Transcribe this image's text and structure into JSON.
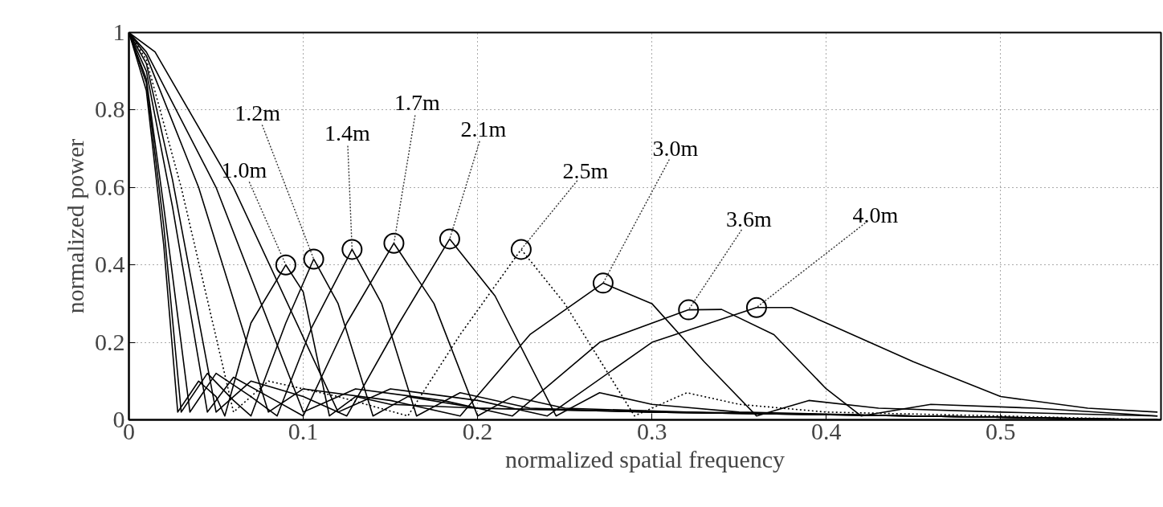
{
  "chart_data": {
    "type": "line",
    "xlabel": "normalized spatial frequency",
    "ylabel": "normalized power",
    "xlim": [
      0,
      0.592
    ],
    "ylim": [
      0,
      1
    ],
    "xticks": [
      0,
      0.1,
      0.2,
      0.3,
      0.4,
      0.5
    ],
    "yticks": [
      0,
      0.2,
      0.4,
      0.6,
      0.8,
      1
    ],
    "grid": true,
    "marker": "none",
    "line_style": "solid",
    "series": [
      {
        "color": "#000000",
        "x": [
          0,
          0.01,
          0.02,
          0.028,
          0.04,
          0.05,
          0.055,
          0.07,
          0.09,
          0.1,
          0.115,
          0.13,
          0.15,
          0.2,
          0.3,
          0.45,
          0.59
        ],
        "values": [
          1,
          0.85,
          0.45,
          0.02,
          0.1,
          0.06,
          0.01,
          0.25,
          0.4,
          0.33,
          0.01,
          0.06,
          0.04,
          0.03,
          0.02,
          0.01,
          0.0
        ]
      },
      {
        "color": "#000000",
        "x": [
          0,
          0.01,
          0.02,
          0.03,
          0.045,
          0.06,
          0.07,
          0.09,
          0.106,
          0.12,
          0.14,
          0.16,
          0.2,
          0.3,
          0.45,
          0.59
        ],
        "values": [
          1,
          0.87,
          0.5,
          0.02,
          0.12,
          0.05,
          0.01,
          0.25,
          0.415,
          0.3,
          0.01,
          0.06,
          0.03,
          0.02,
          0.01,
          0.0
        ]
      },
      {
        "color": "#000000",
        "x": [
          0,
          0.01,
          0.02,
          0.035,
          0.05,
          0.07,
          0.085,
          0.105,
          0.128,
          0.145,
          0.165,
          0.19,
          0.23,
          0.3,
          0.45,
          0.59
        ],
        "values": [
          1,
          0.88,
          0.55,
          0.02,
          0.12,
          0.06,
          0.01,
          0.24,
          0.44,
          0.3,
          0.01,
          0.07,
          0.03,
          0.02,
          0.01,
          0.0
        ]
      },
      {
        "color": "#000000",
        "x": [
          0,
          0.01,
          0.025,
          0.045,
          0.06,
          0.08,
          0.1,
          0.125,
          0.152,
          0.175,
          0.2,
          0.22,
          0.25,
          0.32,
          0.45,
          0.59
        ],
        "values": [
          1,
          0.9,
          0.55,
          0.02,
          0.11,
          0.06,
          0.01,
          0.25,
          0.456,
          0.3,
          0.01,
          0.06,
          0.03,
          0.02,
          0.01,
          0.0
        ]
      },
      {
        "color": "#000000",
        "x": [
          0,
          0.01,
          0.025,
          0.05,
          0.07,
          0.1,
          0.125,
          0.155,
          0.184,
          0.21,
          0.245,
          0.27,
          0.3,
          0.35,
          0.45,
          0.59
        ],
        "values": [
          1,
          0.92,
          0.62,
          0.02,
          0.1,
          0.06,
          0.01,
          0.25,
          0.467,
          0.32,
          0.01,
          0.07,
          0.04,
          0.02,
          0.01,
          0.0
        ]
      },
      {
        "color": "#000000",
        "line_style": "dotted",
        "x": [
          0,
          0.01,
          0.03,
          0.06,
          0.08,
          0.12,
          0.16,
          0.19,
          0.225,
          0.25,
          0.29,
          0.32,
          0.35,
          0.4,
          0.5,
          0.59
        ],
        "values": [
          1,
          0.93,
          0.6,
          0.02,
          0.1,
          0.06,
          0.01,
          0.22,
          0.44,
          0.3,
          0.01,
          0.07,
          0.04,
          0.02,
          0.01,
          0.0
        ]
      },
      {
        "color": "#000000",
        "x": [
          0,
          0.01,
          0.04,
          0.08,
          0.1,
          0.15,
          0.19,
          0.23,
          0.272,
          0.3,
          0.33,
          0.36,
          0.39,
          0.43,
          0.5,
          0.59
        ],
        "values": [
          1,
          0.94,
          0.6,
          0.02,
          0.08,
          0.05,
          0.01,
          0.22,
          0.353,
          0.3,
          0.15,
          0.01,
          0.05,
          0.03,
          0.02,
          0.01
        ]
      },
      {
        "color": "#000000",
        "x": [
          0,
          0.01,
          0.05,
          0.1,
          0.13,
          0.18,
          0.22,
          0.27,
          0.321,
          0.34,
          0.37,
          0.4,
          0.42,
          0.46,
          0.52,
          0.59
        ],
        "values": [
          1,
          0.95,
          0.6,
          0.02,
          0.08,
          0.05,
          0.01,
          0.2,
          0.284,
          0.285,
          0.22,
          0.08,
          0.01,
          0.04,
          0.03,
          0.01
        ]
      },
      {
        "color": "#000000",
        "x": [
          0,
          0.015,
          0.06,
          0.12,
          0.15,
          0.2,
          0.24,
          0.3,
          0.36,
          0.38,
          0.4,
          0.45,
          0.5,
          0.55,
          0.59
        ],
        "values": [
          1,
          0.95,
          0.6,
          0.02,
          0.08,
          0.05,
          0.01,
          0.2,
          0.29,
          0.29,
          0.25,
          0.15,
          0.06,
          0.03,
          0.02
        ]
      },
      {
        "type": "scatter",
        "marker": "circle",
        "color": "#000000",
        "x": [
          0.09,
          0.106,
          0.128,
          0.152,
          0.184,
          0.225,
          0.272,
          0.321,
          0.36
        ],
        "values": [
          0.4,
          0.415,
          0.44,
          0.456,
          0.467,
          0.44,
          0.353,
          0.284,
          0.29
        ]
      }
    ],
    "annotations": [
      {
        "text": "1.0m",
        "x": 0.09,
        "y": 0.4
      },
      {
        "text": "1.2m",
        "x": 0.106,
        "y": 0.415
      },
      {
        "text": "1.4m",
        "x": 0.128,
        "y": 0.44
      },
      {
        "text": "1.7m",
        "x": 0.152,
        "y": 0.456
      },
      {
        "text": "2.1m",
        "x": 0.184,
        "y": 0.467
      },
      {
        "text": "2.5m",
        "x": 0.225,
        "y": 0.44
      },
      {
        "text": "3.0m",
        "x": 0.272,
        "y": 0.353
      },
      {
        "text": "3.6m",
        "x": 0.321,
        "y": 0.284
      },
      {
        "text": "4.0m",
        "x": 0.36,
        "y": 0.29
      }
    ]
  }
}
